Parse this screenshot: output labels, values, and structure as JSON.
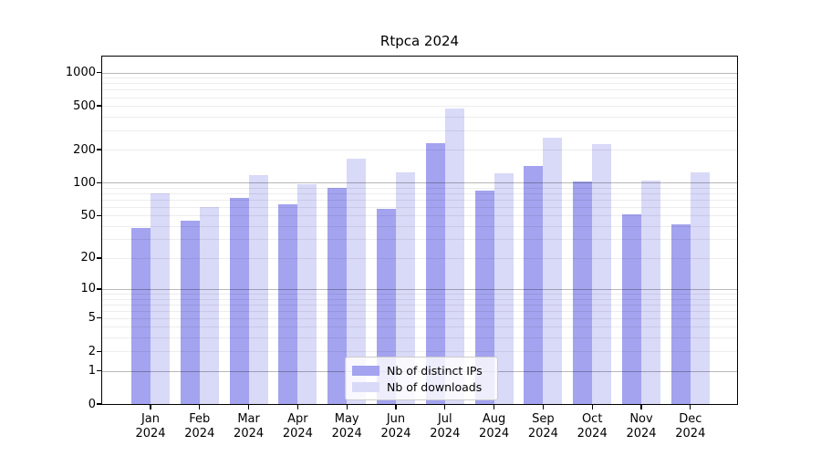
{
  "chart_data": {
    "type": "bar",
    "title": "Rtpca 2024",
    "categories": [
      "Jan",
      "Feb",
      "Mar",
      "Apr",
      "May",
      "Jun",
      "Jul",
      "Aug",
      "Sep",
      "Oct",
      "Nov",
      "Dec"
    ],
    "xtick_year": "2024",
    "series": [
      {
        "name": "Nb of distinct IPs",
        "color": "#a3a3ef",
        "values": [
          38,
          45,
          73,
          63,
          90,
          58,
          228,
          84,
          143,
          103,
          51,
          41
        ]
      },
      {
        "name": "Nb of downloads",
        "color": "#d9d9f8",
        "values": [
          80,
          60,
          117,
          97,
          167,
          125,
          470,
          121,
          259,
          226,
          105,
          125
        ]
      }
    ],
    "yscale": "log1p",
    "yticks": [
      0,
      1,
      2,
      5,
      10,
      20,
      50,
      100,
      200,
      500,
      1000
    ],
    "ylim": [
      0,
      1400
    ],
    "grid": true,
    "legend_position": "lower center"
  }
}
